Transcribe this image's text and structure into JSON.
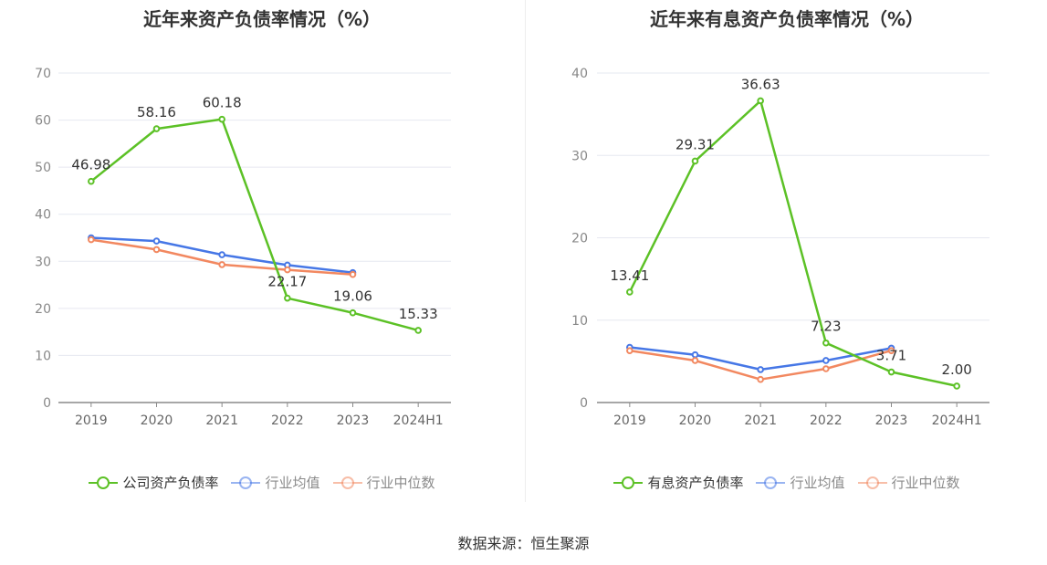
{
  "source": "数据来源：恒生聚源",
  "chart_data": [
    {
      "type": "line",
      "title": "近年来资产负债率情况（%）",
      "categories": [
        "2019",
        "2020",
        "2021",
        "2022",
        "2023",
        "2024H1"
      ],
      "ylim": [
        0,
        70
      ],
      "yticks": [
        0,
        10,
        20,
        30,
        40,
        50,
        60,
        70
      ],
      "grid": true,
      "legend_position": "bottom",
      "series": [
        {
          "name": "公司资产负债率",
          "color": "#5cc126",
          "values": [
            46.98,
            58.16,
            60.18,
            22.17,
            19.06,
            15.33
          ],
          "labels": [
            "46.98",
            "58.16",
            "60.18",
            "22.17",
            "19.06",
            "15.33"
          ]
        },
        {
          "name": "行业均值",
          "color": "#4677e6",
          "values": [
            35.0,
            34.3,
            31.4,
            29.2,
            27.6,
            null
          ],
          "labels": null
        },
        {
          "name": "行业中位数",
          "color": "#f28860",
          "values": [
            34.6,
            32.5,
            29.3,
            28.2,
            27.2,
            null
          ],
          "labels": null
        }
      ]
    },
    {
      "type": "line",
      "title": "近年来有息资产负债率情况（%）",
      "categories": [
        "2019",
        "2020",
        "2021",
        "2022",
        "2023",
        "2024H1"
      ],
      "ylim": [
        0,
        40
      ],
      "yticks": [
        0,
        10,
        20,
        30,
        40
      ],
      "grid": true,
      "legend_position": "bottom",
      "series": [
        {
          "name": "有息资产负债率",
          "color": "#5cc126",
          "values": [
            13.41,
            29.31,
            36.63,
            7.23,
            3.71,
            2.0
          ],
          "labels": [
            "13.41",
            "29.31",
            "36.63",
            "7.23",
            "3.71",
            "2.00"
          ]
        },
        {
          "name": "行业均值",
          "color": "#4677e6",
          "values": [
            6.7,
            5.8,
            4.0,
            5.1,
            6.6,
            null
          ],
          "labels": null
        },
        {
          "name": "行业中位数",
          "color": "#f28860",
          "values": [
            6.3,
            5.1,
            2.8,
            4.1,
            6.3,
            null
          ],
          "labels": null
        }
      ]
    }
  ]
}
